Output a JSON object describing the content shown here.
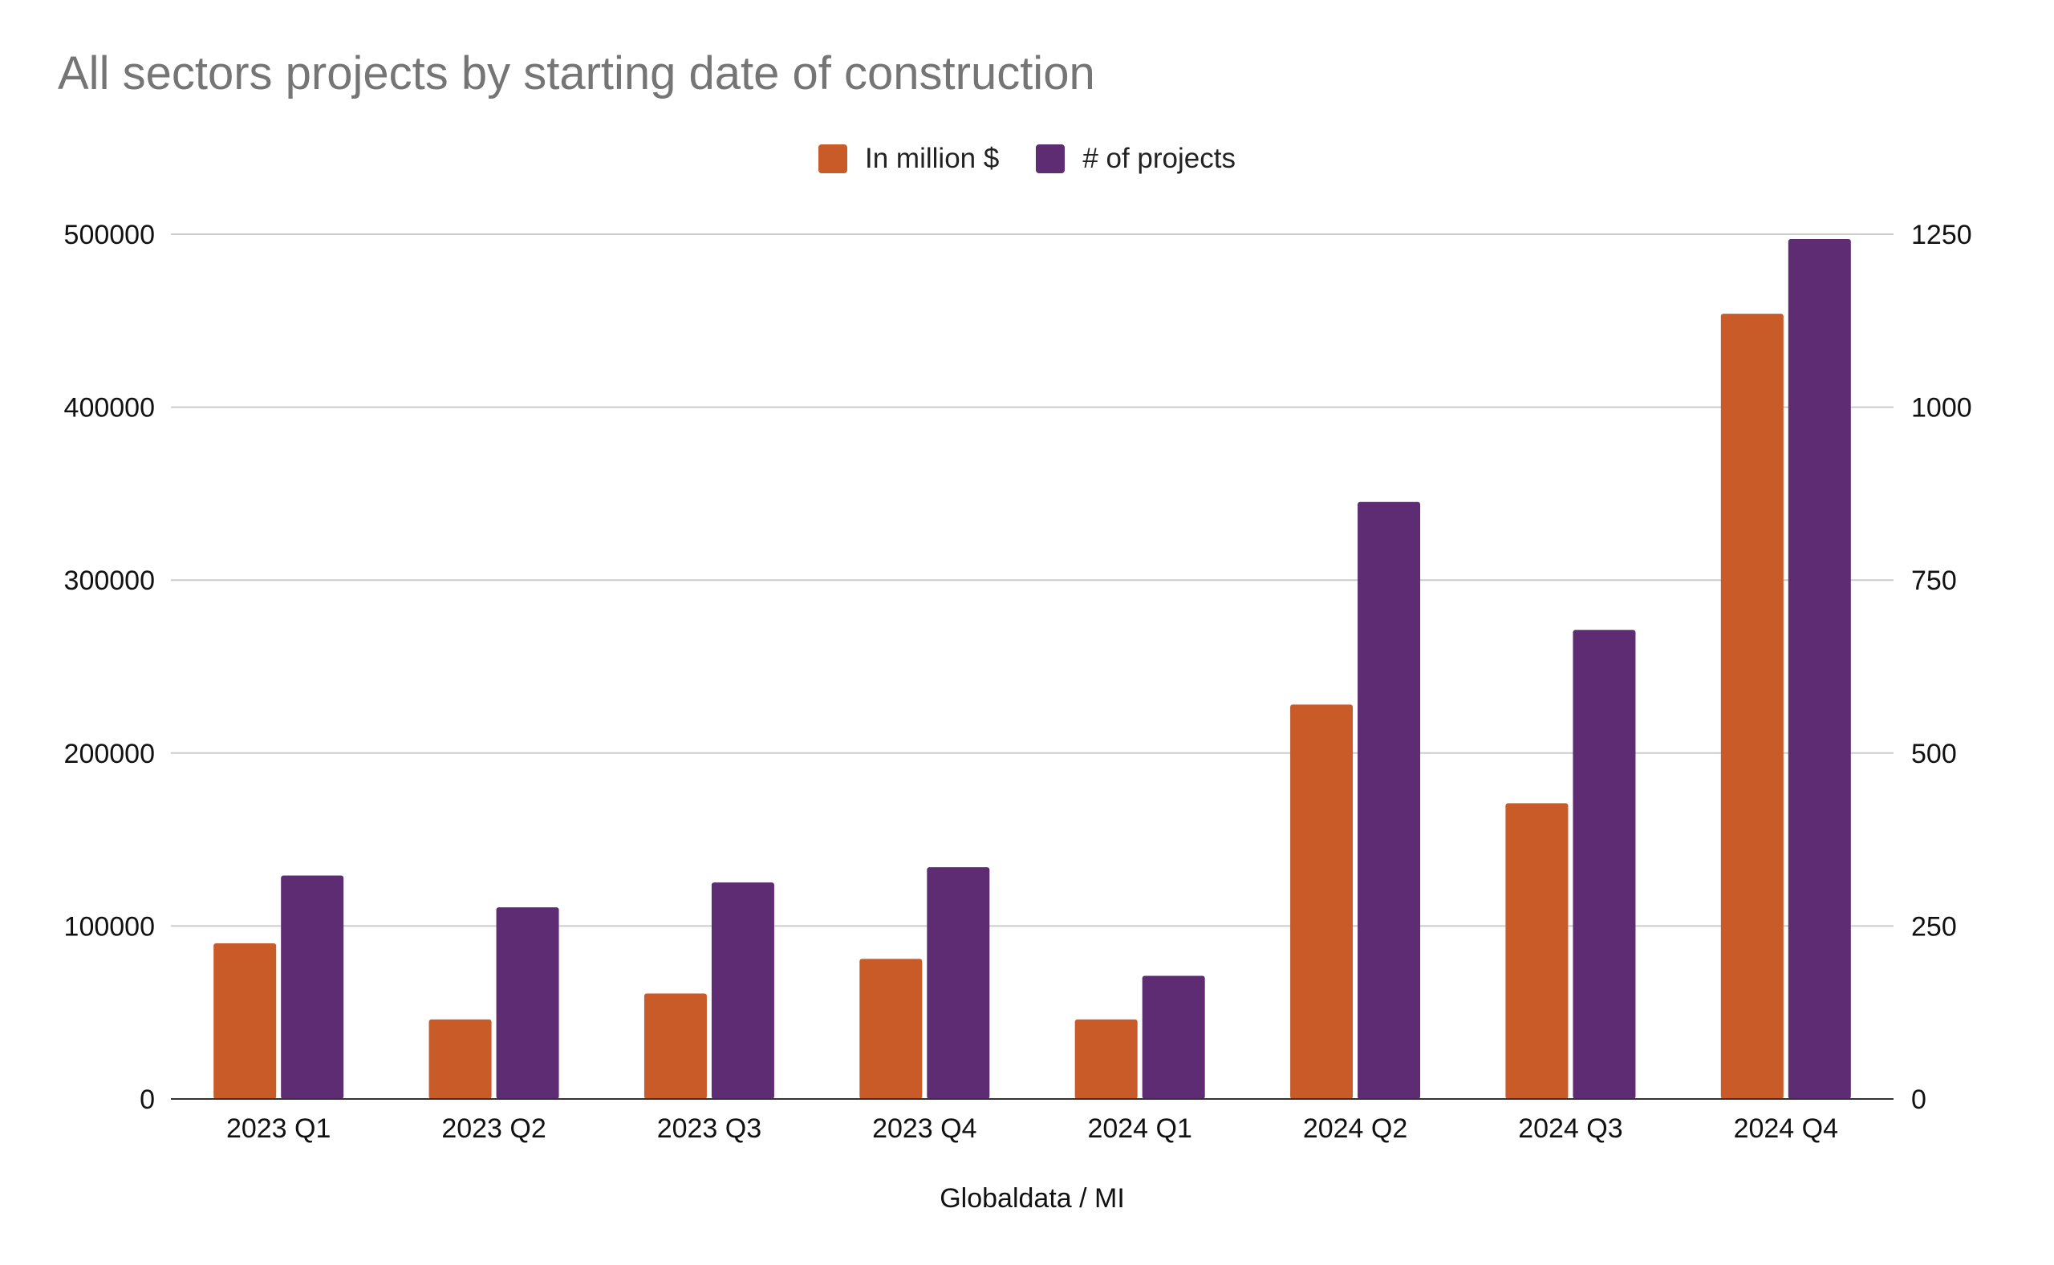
{
  "chart_data": {
    "type": "bar",
    "title": "All sectors projects by starting date of construction",
    "xlabel": "Globaldata / MI",
    "ylabel": "",
    "ylabel_right": "",
    "categories": [
      "2023 Q1",
      "2023 Q2",
      "2023 Q3",
      "2023 Q4",
      "2024 Q1",
      "2024 Q2",
      "2024 Q3",
      "2024 Q4"
    ],
    "series": [
      {
        "name": "In million $",
        "axis": "left",
        "color": "#c95b29",
        "values": [
          90000,
          46000,
          61000,
          81000,
          46000,
          228000,
          171000,
          454000
        ]
      },
      {
        "name": "# of projects",
        "axis": "right",
        "color": "#5e2c72",
        "values": [
          323,
          277,
          313,
          335,
          178,
          863,
          678,
          1243
        ]
      }
    ],
    "ylim": [
      0,
      500000
    ],
    "ylim_right": [
      0,
      1250
    ],
    "yticks": [
      0,
      100000,
      200000,
      300000,
      400000,
      500000
    ],
    "yticks_right": [
      0,
      250,
      500,
      750,
      1000,
      1250
    ],
    "grid": true,
    "legend_position": "top-center"
  }
}
